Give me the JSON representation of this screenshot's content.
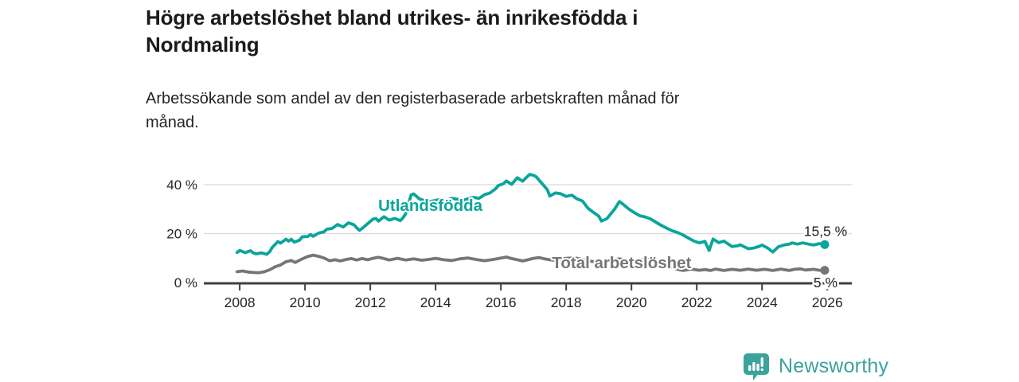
{
  "header": {
    "title_line1": "Högre arbetslöshet bland utrikes- än inrikesfödda i",
    "title_line2": "Nordmaling",
    "subtitle_line1": "Arbetssökande som andel av den registerbaserade arbetskraften månad för",
    "subtitle_line2": "månad."
  },
  "branding": {
    "name": "Newsworthy",
    "color": "#3ba29c"
  },
  "colors": {
    "accent_teal": "#0aa59a",
    "series_gray": "#767676",
    "axis": "#3f3f3f",
    "gridline": "#d9d9d9",
    "tick_label": "#252525"
  },
  "chart_data": {
    "type": "line",
    "title": "Högre arbetslöshet bland utrikes- än inrikesfödda i Nordmaling",
    "subtitle": "Arbetssökande som andel av den registerbaserade arbetskraften månad för månad.",
    "xlabel": "",
    "ylabel": "",
    "grid": true,
    "legend_position": "inline-labels",
    "x_range": [
      2006.9,
      2026.75
    ],
    "y_range": [
      0,
      46.5
    ],
    "x_ticks": [
      2008,
      2010,
      2012,
      2014,
      2016,
      2018,
      2020,
      2022,
      2024,
      2026
    ],
    "y_ticks": [
      {
        "v": 0,
        "label": "0 %"
      },
      {
        "v": 20,
        "label": "20 %"
      },
      {
        "v": 40,
        "label": "40 %"
      }
    ],
    "series": [
      {
        "name": "Utlandsfödda",
        "color": "#0aa59a",
        "label_at": [
          2013.84,
          31.5
        ],
        "end_label": "15,5 %",
        "end_value": 15.5,
        "points": [
          [
            2007.92,
            12.3
          ],
          [
            2008.0,
            13.1
          ],
          [
            2008.17,
            12.2
          ],
          [
            2008.33,
            13.0
          ],
          [
            2008.42,
            12.1
          ],
          [
            2008.5,
            11.7
          ],
          [
            2008.67,
            12.1
          ],
          [
            2008.83,
            11.5
          ],
          [
            2008.92,
            12.6
          ],
          [
            2009.0,
            14.4
          ],
          [
            2009.17,
            16.7
          ],
          [
            2009.25,
            16.1
          ],
          [
            2009.42,
            17.7
          ],
          [
            2009.5,
            16.9
          ],
          [
            2009.58,
            17.7
          ],
          [
            2009.67,
            16.5
          ],
          [
            2009.83,
            17.3
          ],
          [
            2009.92,
            18.7
          ],
          [
            2010.08,
            18.8
          ],
          [
            2010.17,
            19.6
          ],
          [
            2010.25,
            18.9
          ],
          [
            2010.42,
            20.2
          ],
          [
            2010.58,
            20.7
          ],
          [
            2010.67,
            21.8
          ],
          [
            2010.83,
            22.1
          ],
          [
            2011.0,
            23.7
          ],
          [
            2011.17,
            22.7
          ],
          [
            2011.33,
            24.4
          ],
          [
            2011.5,
            23.6
          ],
          [
            2011.58,
            22.4
          ],
          [
            2011.67,
            21.3
          ],
          [
            2011.75,
            22.1
          ],
          [
            2011.92,
            24.1
          ],
          [
            2012.08,
            25.9
          ],
          [
            2012.17,
            26.2
          ],
          [
            2012.25,
            25.1
          ],
          [
            2012.42,
            26.9
          ],
          [
            2012.58,
            25.5
          ],
          [
            2012.75,
            26.2
          ],
          [
            2012.92,
            25.3
          ],
          [
            2013.0,
            26.4
          ],
          [
            2013.08,
            28.0
          ],
          [
            2013.25,
            35.8
          ],
          [
            2013.33,
            36.2
          ],
          [
            2013.5,
            34.2
          ],
          [
            2013.67,
            33.4
          ],
          [
            2013.83,
            33.0
          ],
          [
            2014.0,
            33.6
          ],
          [
            2014.17,
            34.0
          ],
          [
            2014.33,
            33.5
          ],
          [
            2014.5,
            34.4
          ],
          [
            2014.67,
            34.0
          ],
          [
            2014.83,
            33.6
          ],
          [
            2015.0,
            34.2
          ],
          [
            2015.17,
            34.8
          ],
          [
            2015.33,
            34.4
          ],
          [
            2015.5,
            35.9
          ],
          [
            2015.67,
            36.6
          ],
          [
            2015.83,
            38.2
          ],
          [
            2015.92,
            39.6
          ],
          [
            2016.08,
            40.4
          ],
          [
            2016.17,
            41.5
          ],
          [
            2016.33,
            40.1
          ],
          [
            2016.5,
            42.8
          ],
          [
            2016.67,
            41.4
          ],
          [
            2016.75,
            42.5
          ],
          [
            2016.88,
            44.2
          ],
          [
            2017.0,
            43.8
          ],
          [
            2017.08,
            43.2
          ],
          [
            2017.25,
            40.6
          ],
          [
            2017.42,
            38.0
          ],
          [
            2017.5,
            35.3
          ],
          [
            2017.67,
            36.6
          ],
          [
            2017.83,
            36.3
          ],
          [
            2018.0,
            35.2
          ],
          [
            2018.17,
            35.7
          ],
          [
            2018.33,
            34.2
          ],
          [
            2018.5,
            33.3
          ],
          [
            2018.67,
            30.3
          ],
          [
            2018.83,
            28.7
          ],
          [
            2019.0,
            27.1
          ],
          [
            2019.08,
            25.1
          ],
          [
            2019.25,
            26.1
          ],
          [
            2019.42,
            28.9
          ],
          [
            2019.5,
            30.3
          ],
          [
            2019.63,
            33.1
          ],
          [
            2019.75,
            31.9
          ],
          [
            2019.92,
            30.0
          ],
          [
            2020.08,
            28.6
          ],
          [
            2020.25,
            27.3
          ],
          [
            2020.42,
            26.8
          ],
          [
            2020.58,
            26.0
          ],
          [
            2020.75,
            24.6
          ],
          [
            2020.92,
            23.3
          ],
          [
            2021.08,
            22.2
          ],
          [
            2021.25,
            21.1
          ],
          [
            2021.42,
            20.4
          ],
          [
            2021.58,
            19.4
          ],
          [
            2021.75,
            18.1
          ],
          [
            2021.92,
            16.9
          ],
          [
            2022.08,
            16.2
          ],
          [
            2022.25,
            16.8
          ],
          [
            2022.38,
            13.1
          ],
          [
            2022.5,
            17.8
          ],
          [
            2022.67,
            16.3
          ],
          [
            2022.83,
            16.9
          ],
          [
            2023.08,
            14.7
          ],
          [
            2023.25,
            15.0
          ],
          [
            2023.33,
            15.4
          ],
          [
            2023.58,
            13.8
          ],
          [
            2023.75,
            14.1
          ],
          [
            2023.92,
            14.8
          ],
          [
            2024.0,
            15.3
          ],
          [
            2024.17,
            14.1
          ],
          [
            2024.33,
            12.5
          ],
          [
            2024.5,
            14.6
          ],
          [
            2024.67,
            15.3
          ],
          [
            2024.83,
            15.7
          ],
          [
            2024.92,
            16.2
          ],
          [
            2025.08,
            15.7
          ],
          [
            2025.25,
            16.2
          ],
          [
            2025.42,
            15.7
          ],
          [
            2025.58,
            15.3
          ],
          [
            2025.75,
            15.9
          ],
          [
            2025.92,
            15.5
          ]
        ]
      },
      {
        "name": "Total arbetslöshet",
        "color": "#767676",
        "label_at": [
          2019.7,
          8.1
        ],
        "end_label": "5 %",
        "end_value": 5.0,
        "points": [
          [
            2007.92,
            4.4
          ],
          [
            2008.08,
            4.7
          ],
          [
            2008.25,
            4.3
          ],
          [
            2008.42,
            4.1
          ],
          [
            2008.58,
            4.0
          ],
          [
            2008.75,
            4.4
          ],
          [
            2008.92,
            5.2
          ],
          [
            2009.08,
            6.4
          ],
          [
            2009.25,
            7.2
          ],
          [
            2009.42,
            8.5
          ],
          [
            2009.58,
            9.0
          ],
          [
            2009.7,
            8.2
          ],
          [
            2009.92,
            9.7
          ],
          [
            2010.08,
            10.6
          ],
          [
            2010.25,
            11.2
          ],
          [
            2010.42,
            10.7
          ],
          [
            2010.58,
            10.0
          ],
          [
            2010.75,
            8.9
          ],
          [
            2010.92,
            9.3
          ],
          [
            2011.08,
            8.8
          ],
          [
            2011.25,
            9.4
          ],
          [
            2011.42,
            9.8
          ],
          [
            2011.58,
            9.2
          ],
          [
            2011.75,
            9.8
          ],
          [
            2011.92,
            9.3
          ],
          [
            2012.08,
            9.9
          ],
          [
            2012.25,
            10.3
          ],
          [
            2012.42,
            9.8
          ],
          [
            2012.58,
            9.2
          ],
          [
            2012.83,
            9.9
          ],
          [
            2013.08,
            9.2
          ],
          [
            2013.33,
            9.7
          ],
          [
            2013.58,
            9.1
          ],
          [
            2013.83,
            9.5
          ],
          [
            2014.0,
            9.9
          ],
          [
            2014.25,
            9.3
          ],
          [
            2014.5,
            9.0
          ],
          [
            2014.75,
            9.7
          ],
          [
            2015.0,
            10.0
          ],
          [
            2015.25,
            9.4
          ],
          [
            2015.5,
            8.9
          ],
          [
            2015.75,
            9.4
          ],
          [
            2016.0,
            10.0
          ],
          [
            2016.17,
            10.4
          ],
          [
            2016.33,
            9.8
          ],
          [
            2016.5,
            9.3
          ],
          [
            2016.67,
            8.8
          ],
          [
            2016.83,
            9.3
          ],
          [
            2017.0,
            9.9
          ],
          [
            2017.17,
            10.2
          ],
          [
            2017.33,
            9.7
          ],
          [
            2017.5,
            9.3
          ],
          [
            2017.67,
            9.0
          ],
          [
            2017.83,
            9.5
          ],
          [
            2018.0,
            9.9
          ],
          [
            2018.25,
            10.1
          ],
          [
            2018.5,
            9.4
          ],
          [
            2018.75,
            8.7
          ],
          [
            2019.0,
            8.3
          ],
          [
            2019.25,
            8.8
          ],
          [
            2019.5,
            9.4
          ],
          [
            2019.63,
            9.7
          ],
          [
            2019.83,
            9.2
          ],
          [
            2020.08,
            8.8
          ],
          [
            2020.25,
            9.1
          ],
          [
            2020.42,
            9.6
          ],
          [
            2020.58,
            9.1
          ],
          [
            2020.75,
            8.3
          ],
          [
            2020.92,
            7.5
          ],
          [
            2021.08,
            6.8
          ],
          [
            2021.25,
            6.1
          ],
          [
            2021.42,
            5.4
          ],
          [
            2021.58,
            4.9
          ],
          [
            2021.83,
            5.5
          ],
          [
            2022.08,
            5.0
          ],
          [
            2022.25,
            5.3
          ],
          [
            2022.42,
            4.9
          ],
          [
            2022.58,
            5.5
          ],
          [
            2022.83,
            4.9
          ],
          [
            2023.08,
            5.4
          ],
          [
            2023.33,
            5.0
          ],
          [
            2023.58,
            5.5
          ],
          [
            2023.83,
            5.0
          ],
          [
            2024.08,
            5.4
          ],
          [
            2024.33,
            4.9
          ],
          [
            2024.58,
            5.5
          ],
          [
            2024.83,
            4.9
          ],
          [
            2025.0,
            5.4
          ],
          [
            2025.17,
            5.6
          ],
          [
            2025.33,
            5.1
          ],
          [
            2025.58,
            5.4
          ],
          [
            2025.75,
            5.0
          ],
          [
            2025.92,
            5.0
          ]
        ]
      }
    ]
  }
}
